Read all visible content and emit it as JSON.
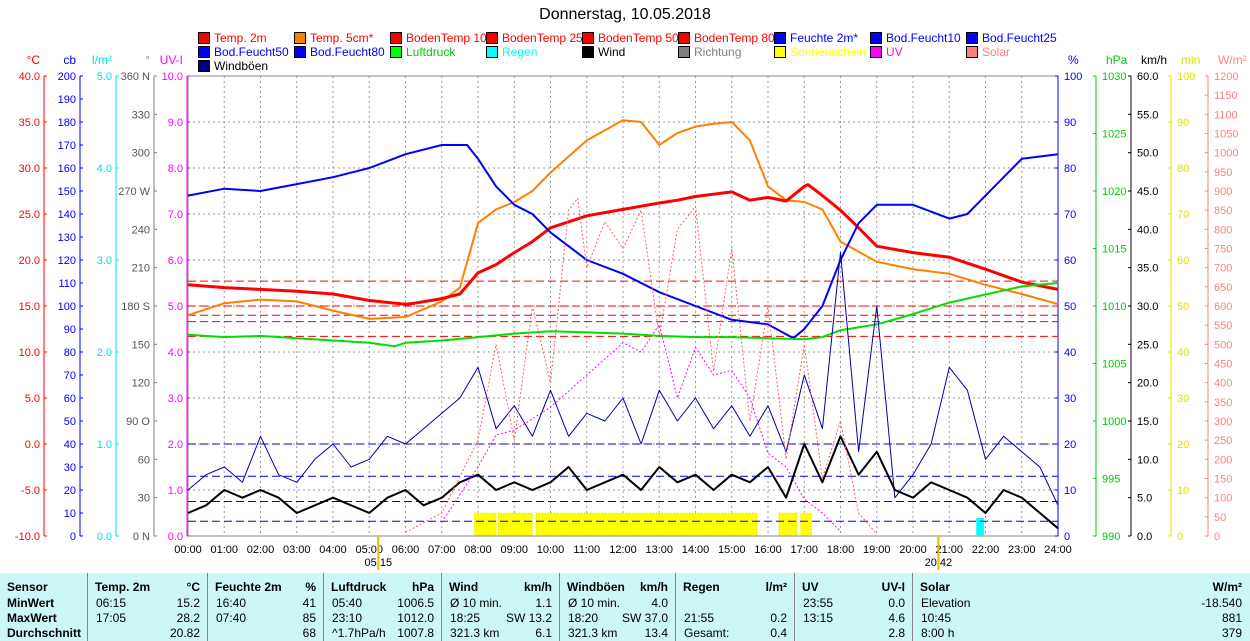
{
  "title": "Donnerstag, 10.05.2018",
  "legend": [
    {
      "label": "Temp. 2m",
      "color": "#ff0000",
      "text": "#ff0000"
    },
    {
      "label": "Temp. 5cm*",
      "color": "#ff8000",
      "text": "#ff0000"
    },
    {
      "label": "BodenTemp 10",
      "color": "#ff0000",
      "text": "#ff0000"
    },
    {
      "label": "BodenTemp 25",
      "color": "#ff0000",
      "text": "#ff0000"
    },
    {
      "label": "BodenTemp 50",
      "color": "#ff0000",
      "text": "#ff0000"
    },
    {
      "label": "BodenTemp 80",
      "color": "#ff0000",
      "text": "#ff0000"
    },
    {
      "label": "Feuchte 2m*",
      "color": "#0000ff",
      "text": "#0000ff"
    },
    {
      "label": "Bod.Feucht10",
      "color": "#0000ff",
      "text": "#0000ff"
    },
    {
      "label": "Bod.Feucht25",
      "color": "#0000ff",
      "text": "#0000ff"
    },
    {
      "label": "Bod.Feucht50",
      "color": "#0000ff",
      "text": "#0000ff"
    },
    {
      "label": "Bod.Feucht80",
      "color": "#0000ff",
      "text": "#0000ff"
    },
    {
      "label": "Luftdruck",
      "color": "#00ff00",
      "text": "#00cc00"
    },
    {
      "label": "Regen",
      "color": "#00ffff",
      "text": "#00ffff"
    },
    {
      "label": "Wind",
      "color": "#000000",
      "text": "#000000"
    },
    {
      "label": "Richtung",
      "color": "#808080",
      "text": "#808080"
    },
    {
      "label": "Sonnenschein",
      "color": "#ffff00",
      "text": "#ffff00"
    },
    {
      "label": "UV",
      "color": "#ff00ff",
      "text": "#ff00ff"
    },
    {
      "label": "Solar",
      "color": "#ff8080",
      "text": "#ff8080"
    },
    {
      "label": "Windböen",
      "color": "#000080",
      "text": "#000000"
    }
  ],
  "chart_data": {
    "type": "line",
    "title": "Donnerstag, 10.05.2018",
    "x_ticks": [
      "00:00",
      "01:00",
      "02:00",
      "03:00",
      "04:00",
      "05:00",
      "06:00",
      "07:00",
      "08:00",
      "09:00",
      "10:00",
      "11:00",
      "12:00",
      "13:00",
      "14:00",
      "15:00",
      "16:00",
      "17:00",
      "18:00",
      "19:00",
      "20:00",
      "21:00",
      "22:00",
      "23:00",
      "24:00"
    ],
    "sunrise": "05:15",
    "sunset": "20:42",
    "axes": {
      "temp": {
        "unit": "°C",
        "color": "#ff0000",
        "range": [
          -10,
          40
        ],
        "ticks": [
          "40.0",
          "35.0",
          "30.0",
          "25.0",
          "20.0",
          "15.0",
          "10.0",
          "5.0",
          "0.0",
          "-5.0",
          "-10.0"
        ]
      },
      "cb": {
        "unit": "cb",
        "color": "#0000ff",
        "range": [
          0,
          200
        ],
        "ticks": [
          "200",
          "190",
          "180",
          "170",
          "160",
          "150",
          "140",
          "130",
          "120",
          "110",
          "100",
          "90",
          "80",
          "70",
          "60",
          "50",
          "40",
          "30",
          "20",
          "10",
          "0"
        ]
      },
      "rain": {
        "unit": "l/m²",
        "color": "#00e0e0",
        "range": [
          0,
          5
        ],
        "ticks": [
          "5.0",
          "4.0",
          "3.0",
          "2.0",
          "1.0",
          "0.0"
        ]
      },
      "dir": {
        "unit": "°",
        "color": "#808080",
        "range": [
          0,
          360
        ],
        "ticks": [
          "360 N",
          "330",
          "300",
          "270 W",
          "240",
          "210",
          "180 S",
          "150",
          "120",
          "90  O",
          "60",
          "30",
          "0  N"
        ]
      },
      "uvi": {
        "unit": "UV-I",
        "color": "#ff00ff",
        "range": [
          0,
          10
        ],
        "ticks": [
          "10.0",
          "9.0",
          "8.0",
          "7.0",
          "6.0",
          "5.0",
          "4.0",
          "3.0",
          "2.0",
          "1.0",
          "0.0"
        ]
      },
      "hum": {
        "unit": "%",
        "color": "#0000ff",
        "range": [
          0,
          100
        ],
        "ticks": [
          "100",
          "90",
          "80",
          "70",
          "60",
          "50",
          "40",
          "30",
          "20",
          "10",
          "0"
        ]
      },
      "press": {
        "unit": "hPa",
        "color": "#00cc00",
        "range": [
          990,
          1030
        ],
        "ticks": [
          "1030",
          "1025",
          "1020",
          "1015",
          "1010",
          "1005",
          "1000",
          "995",
          "990"
        ]
      },
      "wind": {
        "unit": "km/h",
        "color": "#000000",
        "range": [
          0,
          60
        ],
        "ticks": [
          "60.0",
          "55.0",
          "50.0",
          "45.0",
          "40.0",
          "35.0",
          "30.0",
          "25.0",
          "20.0",
          "15.0",
          "10.0",
          "5.0",
          "0.0"
        ]
      },
      "sun": {
        "unit": "min",
        "color": "#e0e000",
        "range": [
          0,
          100
        ],
        "ticks": [
          "100",
          "90",
          "80",
          "70",
          "60",
          "50",
          "40",
          "30",
          "20",
          "10",
          "0"
        ]
      },
      "solar": {
        "unit": "W/m²",
        "color": "#ff8080",
        "range": [
          0,
          1200
        ],
        "ticks": [
          "1200",
          "1150",
          "1100",
          "1050",
          "1000",
          "950",
          "900",
          "850",
          "800",
          "750",
          "700",
          "650",
          "600",
          "550",
          "500",
          "450",
          "400",
          "350",
          "300",
          "250",
          "200",
          "150",
          "100",
          "50",
          "0"
        ]
      }
    },
    "series": [
      {
        "name": "Temp. 5cm*",
        "axis": "temp",
        "color": "#ff8000",
        "width": 2,
        "hours": [
          0,
          1,
          2,
          3,
          4,
          5,
          6,
          7,
          7.5,
          8,
          8.5,
          9,
          9.5,
          10,
          11,
          12,
          12.5,
          13,
          13.5,
          14,
          14.5,
          15,
          15.5,
          16,
          16.5,
          17,
          17.5,
          18,
          19,
          20,
          21,
          22,
          23,
          24
        ],
        "values": [
          14,
          15.3,
          15.7,
          15.5,
          14.5,
          13.6,
          13.8,
          15.5,
          17,
          24,
          25.5,
          26.3,
          27.5,
          29.5,
          33,
          35.2,
          35,
          32.5,
          33.8,
          34.5,
          34.8,
          35,
          33,
          28,
          26.5,
          26.3,
          25.5,
          22,
          19.8,
          19,
          18.5,
          17.3,
          16.3,
          15.2
        ]
      },
      {
        "name": "Temp. 2m",
        "axis": "temp",
        "color": "#ff0000",
        "width": 3,
        "hours": [
          0,
          1,
          2,
          3,
          4,
          5,
          6,
          6.25,
          7,
          7.5,
          8,
          8.5,
          9,
          9.5,
          10,
          11,
          12,
          13,
          13.5,
          14,
          15,
          15.5,
          16,
          16.5,
          17,
          17.1,
          17.5,
          18,
          18.5,
          19,
          20,
          21,
          22,
          23,
          24
        ],
        "values": [
          17.3,
          17.0,
          16.8,
          16.6,
          16.3,
          15.6,
          15.2,
          15.3,
          15.8,
          16.3,
          18.6,
          19.5,
          20.8,
          22,
          23.5,
          24.8,
          25.5,
          26.2,
          26.5,
          26.9,
          27.4,
          26.5,
          26.8,
          26.4,
          28.0,
          28.2,
          27,
          25.4,
          23.5,
          21.5,
          20.8,
          20.3,
          19,
          17.6,
          16.8
        ]
      },
      {
        "name": "Feuchte 2m*",
        "axis": "hum",
        "color": "#0000ff",
        "width": 2,
        "hours": [
          0,
          1,
          2,
          3,
          4,
          5,
          6,
          7,
          7.7,
          8,
          8.5,
          9,
          9.5,
          10,
          11,
          12,
          13,
          14,
          15,
          16,
          16.7,
          17,
          17.5,
          18,
          18.5,
          19,
          20,
          21,
          21.5,
          22,
          23,
          24
        ],
        "values": [
          74,
          75.5,
          75,
          76.5,
          78,
          80,
          83,
          85,
          85,
          82,
          76,
          72,
          70,
          66,
          60,
          57,
          53,
          50,
          47,
          46,
          43,
          45,
          50,
          60,
          68,
          72,
          72,
          69,
          70,
          74,
          82,
          83
        ]
      },
      {
        "name": "Luftdruck",
        "axis": "press",
        "color": "#00e000",
        "width": 2,
        "hours": [
          0,
          1,
          2,
          3,
          4,
          5,
          5.7,
          6,
          7,
          8,
          9,
          10,
          11,
          12,
          13,
          14,
          15,
          16,
          17,
          17.5,
          18,
          19,
          20,
          21,
          22,
          23,
          24
        ],
        "values": [
          1007.5,
          1007.3,
          1007.4,
          1007.2,
          1007,
          1006.8,
          1006.5,
          1006.8,
          1007,
          1007.3,
          1007.6,
          1007.8,
          1007.7,
          1007.6,
          1007.4,
          1007.3,
          1007.3,
          1007.2,
          1007.1,
          1007.3,
          1007.9,
          1008.4,
          1009.3,
          1010.3,
          1011.0,
          1011.7,
          1012.0
        ]
      },
      {
        "name": "Windböen",
        "axis": "wind",
        "color": "#0000aa",
        "width": 1,
        "hours": [
          0,
          0.5,
          1,
          1.5,
          2,
          2.5,
          3,
          3.5,
          4,
          4.5,
          5,
          5.5,
          6,
          6.5,
          7,
          7.5,
          8,
          8.5,
          9,
          9.5,
          10,
          10.5,
          11,
          11.5,
          12,
          12.5,
          13,
          13.5,
          14,
          14.5,
          15,
          15.5,
          16,
          16.5,
          17,
          17.5,
          18,
          18.5,
          19,
          19.5,
          20,
          20.5,
          21,
          21.5,
          22,
          22.5,
          23,
          23.5,
          24
        ],
        "values": [
          6,
          8,
          9,
          7,
          13,
          8,
          7,
          10,
          12,
          9,
          10,
          13,
          12,
          14,
          16,
          18,
          22,
          14,
          17,
          13,
          19,
          13,
          16,
          15,
          18,
          12,
          19,
          15,
          18,
          14,
          17,
          13,
          17,
          11,
          21,
          14,
          37,
          11,
          30,
          5,
          8,
          12,
          22,
          19,
          10,
          13,
          11,
          9,
          4
        ]
      },
      {
        "name": "Wind",
        "axis": "wind",
        "color": "#000000",
        "width": 2,
        "hours": [
          0,
          0.5,
          1,
          1.5,
          2,
          2.5,
          3,
          3.5,
          4,
          4.5,
          5,
          5.5,
          6,
          6.5,
          7,
          7.5,
          8,
          8.5,
          9,
          9.5,
          10,
          10.5,
          11,
          11.5,
          12,
          12.5,
          13,
          13.5,
          14,
          14.5,
          15,
          15.5,
          16,
          16.5,
          17,
          17.5,
          18,
          18.5,
          19,
          19.5,
          20,
          20.5,
          21,
          21.5,
          22,
          22.5,
          23,
          23.5,
          24
        ],
        "values": [
          3,
          4,
          6,
          5,
          6,
          5,
          3,
          4,
          5,
          4,
          3,
          5,
          6,
          4,
          5,
          7,
          8,
          6,
          7,
          6,
          7,
          9,
          6,
          7,
          8,
          6,
          9,
          7,
          8,
          6,
          8,
          7,
          9,
          5,
          12,
          7,
          13,
          8,
          11,
          6,
          5,
          7,
          6,
          5,
          3,
          6,
          5,
          3,
          1
        ]
      },
      {
        "name": "UV",
        "axis": "uvi",
        "color": "#ff00ff",
        "width": 1,
        "dash": "2,2",
        "hours": [
          7,
          8,
          8.5,
          9,
          10,
          11,
          12,
          12.5,
          13,
          13.5,
          14,
          14.5,
          15,
          15.5,
          16,
          16.5,
          17,
          17.5,
          18
        ],
        "values": [
          0.3,
          1.5,
          2.2,
          2.3,
          2.8,
          3.5,
          4.2,
          4.0,
          4.6,
          3.0,
          4.1,
          3.5,
          3.6,
          3.0,
          1.8,
          1.5,
          0.8,
          0.5,
          0.1
        ]
      },
      {
        "name": "Solar",
        "axis": "solar",
        "color": "#ff6060",
        "width": 1,
        "dash": "2,2",
        "hours": [
          6,
          7,
          8,
          8.5,
          9,
          9.5,
          10,
          10.5,
          10.75,
          11,
          11.5,
          12,
          12.5,
          13,
          13.5,
          14,
          14.5,
          15,
          15.5,
          16,
          16.5,
          17,
          17.5,
          18,
          18.5,
          19
        ],
        "values": [
          10,
          60,
          250,
          500,
          250,
          600,
          400,
          850,
          881,
          700,
          820,
          750,
          850,
          520,
          800,
          860,
          430,
          750,
          300,
          600,
          200,
          500,
          150,
          300,
          60,
          5
        ]
      }
    ],
    "soil_levels": [
      {
        "name": "BodenTemp 80",
        "axis": "temp",
        "value": 17.7
      },
      {
        "name": "BodenTemp 50",
        "axis": "temp",
        "value": 15.0
      },
      {
        "name": "BodenTemp 25",
        "axis": "temp",
        "value": 14.0
      },
      {
        "name": "BodenTemp 10",
        "axis": "temp",
        "value": 13.3
      },
      {
        "name": "BodenTemp",
        "axis": "temp",
        "value": 11.7
      },
      {
        "name": "Bod.Feucht10",
        "axis": "hum",
        "value": 20
      },
      {
        "name": "Bod.Feucht25",
        "axis": "hum",
        "value": 13
      },
      {
        "name": "Bod.Feucht50",
        "axis": "hum",
        "value": 7.5
      },
      {
        "name": "Bod.Feucht80",
        "axis": "hum",
        "value": 3.2
      }
    ],
    "sunshine_periods": [
      [
        7.9,
        8.5
      ],
      [
        8.55,
        9.5
      ],
      [
        9.6,
        15.7
      ],
      [
        16.3,
        16.8
      ],
      [
        16.9,
        17.2
      ]
    ],
    "rain_bars": [
      21.8,
      21.9
    ]
  },
  "table": {
    "headers": [
      [
        "Sensor"
      ],
      [
        "Temp. 2m",
        "°C"
      ],
      [
        "Feuchte 2m",
        "%"
      ],
      [
        "Luftdruck",
        "hPa"
      ],
      [
        "Wind",
        "km/h"
      ],
      [
        "Windböen",
        "km/h"
      ],
      [
        "Regen",
        "l/m²"
      ],
      [
        "UV",
        "UV-I"
      ],
      [
        "Solar",
        "W/m²"
      ]
    ],
    "rows": [
      {
        "label": "MinWert",
        "cells": [
          [
            "06:15",
            "15.2"
          ],
          [
            "16:40",
            "41"
          ],
          [
            "05:40",
            "1006.5"
          ],
          [
            "Ø 10 min.",
            "1.1"
          ],
          [
            "Ø 10 min.",
            "4.0"
          ],
          [
            "",
            ""
          ],
          [
            "23:55",
            "0.0"
          ],
          [
            "Elevation",
            "-18.540"
          ]
        ]
      },
      {
        "label": "MaxWert",
        "cells": [
          [
            "17:05",
            "28.2"
          ],
          [
            "07:40",
            "85"
          ],
          [
            "23:10",
            "1012.0"
          ],
          [
            "18:25",
            "SW 13.2"
          ],
          [
            "18:20",
            "SW 37.0"
          ],
          [
            "21:55",
            "0.2"
          ],
          [
            "13:15",
            "4.6"
          ],
          [
            "10:45",
            "881"
          ]
        ]
      },
      {
        "label": "Durchschnitt",
        "cells": [
          [
            "",
            "20.82"
          ],
          [
            "",
            "68"
          ],
          [
            "^1.7hPa/h",
            "1007.8"
          ],
          [
            "321.3 km",
            "6.1"
          ],
          [
            "321.3 km",
            "13.4"
          ],
          [
            "Gesamt:",
            "0.4"
          ],
          [
            "",
            "2.8"
          ],
          [
            "8:00 h",
            "379"
          ]
        ]
      }
    ]
  }
}
